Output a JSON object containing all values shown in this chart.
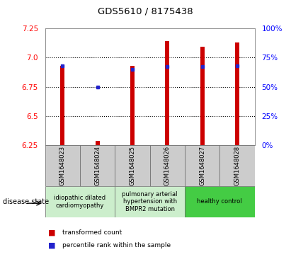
{
  "title": "GDS5610 / 8175438",
  "samples": [
    "GSM1648023",
    "GSM1648024",
    "GSM1648025",
    "GSM1648026",
    "GSM1648027",
    "GSM1648028"
  ],
  "bar_base": 6.25,
  "bar_tops": [
    6.93,
    6.285,
    6.93,
    7.14,
    7.09,
    7.13
  ],
  "percentile_ranks": [
    68,
    50,
    65,
    67,
    67,
    68
  ],
  "ylim_left": [
    6.25,
    7.25
  ],
  "ylim_right": [
    0,
    100
  ],
  "yticks_left": [
    6.25,
    6.5,
    6.75,
    7.0,
    7.25
  ],
  "yticks_right": [
    0,
    25,
    50,
    75,
    100
  ],
  "ytick_labels_right": [
    "0%",
    "25%",
    "50%",
    "75%",
    "100%"
  ],
  "bar_color": "#cc0000",
  "marker_color": "#2222cc",
  "bar_width": 0.12,
  "groups": [
    {
      "start": 0,
      "end": 1,
      "label": "idiopathic dilated\ncardiomyopathy",
      "color": "#cceecc"
    },
    {
      "start": 2,
      "end": 3,
      "label": "pulmonary arterial\nhypertension with\nBMPR2 mutation",
      "color": "#cceecc"
    },
    {
      "start": 4,
      "end": 5,
      "label": "healthy control",
      "color": "#44cc44"
    }
  ],
  "disease_state_label": "disease state",
  "legend_red_label": "transformed count",
  "legend_blue_label": "percentile rank within the sample",
  "gridlines_at": [
    6.5,
    6.75,
    7.0
  ],
  "sample_box_color": "#cccccc",
  "plot_bg": "#ffffff"
}
